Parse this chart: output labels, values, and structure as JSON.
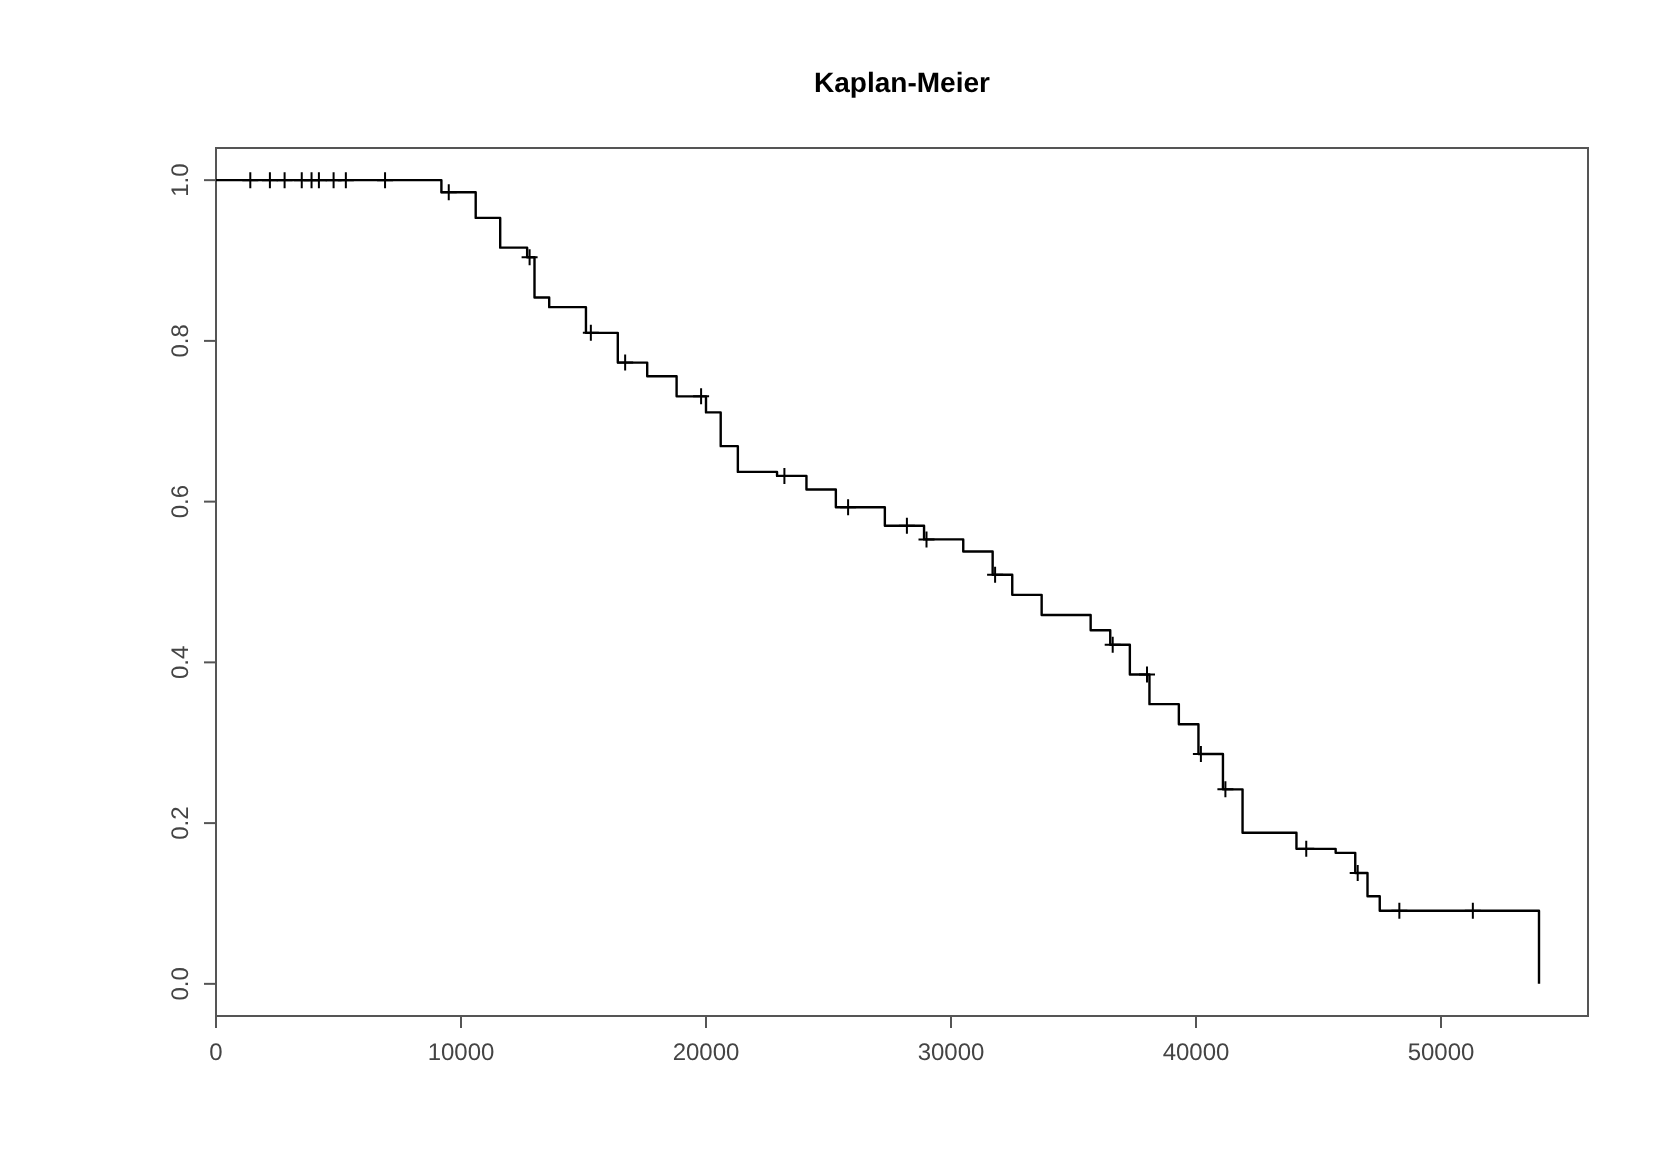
{
  "chart_data": {
    "type": "step",
    "title": "Kaplan-Meier",
    "xlim": [
      0,
      56000
    ],
    "xticks": [
      0,
      10000,
      20000,
      30000,
      40000,
      50000
    ],
    "ylim": [
      -0.04,
      1.04
    ],
    "yticks": [
      {
        "value": 0,
        "label": "0.0"
      },
      {
        "value": 0.2,
        "label": "0.2"
      },
      {
        "value": 0.4,
        "label": "0.4"
      },
      {
        "value": 0.6,
        "label": "0.6"
      },
      {
        "value": 0.8,
        "label": "0.8"
      },
      {
        "value": 1,
        "label": "1.0"
      }
    ],
    "grid": false,
    "series": [
      {
        "color": "#000000",
        "marker": "none",
        "x": [
          0,
          9200,
          10600,
          11600,
          12700,
          13000,
          13600,
          15100,
          16400,
          17600,
          18800,
          20000,
          20600,
          21300,
          22900,
          24100,
          25300,
          27300,
          28900,
          30500,
          31700,
          32500,
          33700,
          35700,
          36500,
          37300,
          38100,
          39300,
          40100,
          41100,
          41900,
          44100,
          45700,
          46500,
          47000,
          47500,
          54000
        ],
        "values": [
          1,
          0.985,
          0.953,
          0.916,
          0.904,
          0.854,
          0.842,
          0.81,
          0.773,
          0.756,
          0.731,
          0.711,
          0.669,
          0.637,
          0.632,
          0.615,
          0.593,
          0.57,
          0.553,
          0.538,
          0.509,
          0.484,
          0.459,
          0.44,
          0.422,
          0.385,
          0.348,
          0.323,
          0.286,
          0.242,
          0.188,
          0.168,
          0.163,
          0.138,
          0.109,
          0.091,
          0
        ]
      },
      {
        "type": "scatter",
        "color": "#000000",
        "marker": "cross",
        "x": [
          1400,
          2200,
          2800,
          3500,
          3900,
          4200,
          4800,
          5300,
          6900,
          9500,
          12800,
          15300,
          16700,
          19800,
          23200,
          25800,
          28200,
          29000,
          31800,
          36600,
          38000,
          40200,
          41200,
          44500,
          46600,
          48300,
          51300
        ],
        "values": [
          1,
          1,
          1,
          1,
          1,
          1,
          1,
          1,
          1,
          0.985,
          0.904,
          0.81,
          0.773,
          0.731,
          0.632,
          0.593,
          0.57,
          0.553,
          0.509,
          0.422,
          0.385,
          0.286,
          0.242,
          0.168,
          0.138,
          0.091,
          0.091
        ]
      }
    ]
  }
}
